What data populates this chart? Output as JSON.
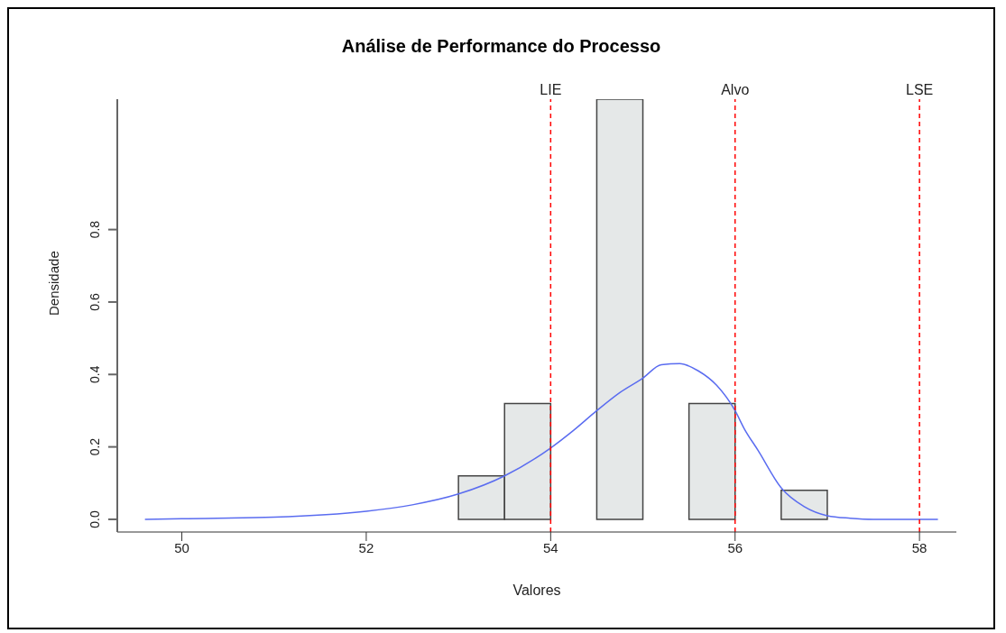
{
  "chart_data": {
    "type": "histogram",
    "title": "Análise de Performance do Processo",
    "xlabel": "Valores",
    "ylabel": "Densidade",
    "bins": [
      53,
      53.5,
      54,
      54.5,
      55,
      55.5,
      56,
      56.5,
      57
    ],
    "values": [
      0.12,
      0.32,
      0,
      1.16,
      0,
      0.32,
      0,
      0.08
    ],
    "color": "#e5e8e8",
    "series": [
      {
        "type": "line",
        "color": "#5a6cf0",
        "x": [
          49.6,
          50,
          51,
          52,
          52.5,
          53,
          53.5,
          54,
          54.25,
          54.5,
          54.75,
          55,
          55.2,
          55.4,
          55.6,
          55.8,
          56,
          56.1,
          56.25,
          56.5,
          56.75,
          57,
          57.25,
          57.5,
          58,
          58.2
        ],
        "values": [
          0,
          0.002,
          0.006,
          0.022,
          0.04,
          0.07,
          0.12,
          0.197,
          0.246,
          0.3,
          0.35,
          0.39,
          0.427,
          0.43,
          0.41,
          0.37,
          0.3,
          0.25,
          0.19,
          0.087,
          0.035,
          0.01,
          0.003,
          0,
          0,
          0
        ]
      }
    ],
    "xlim": [
      49.3,
      58.4
    ],
    "xticks": [
      50,
      52,
      54,
      56,
      58
    ],
    "ylim": [
      -0.035,
      1.16
    ],
    "yticks": [
      {
        "value": 0,
        "label": "0.0"
      },
      {
        "value": 0.2,
        "label": "0.2"
      },
      {
        "value": 0.4,
        "label": "0.4"
      },
      {
        "value": 0.6,
        "label": "0.6"
      },
      {
        "value": 0.8,
        "label": "0.8"
      }
    ],
    "ref_lines": [
      {
        "axis": "x",
        "value": 54,
        "label": "LIE",
        "color": "#ff0000",
        "line_style": "dashed"
      },
      {
        "axis": "x",
        "value": 56,
        "label": "Alvo",
        "color": "#ff0000",
        "line_style": "dashed"
      },
      {
        "axis": "x",
        "value": 58,
        "label": "LSE",
        "color": "#ff0000",
        "line_style": "dashed"
      }
    ],
    "grid": false,
    "legend": false
  }
}
